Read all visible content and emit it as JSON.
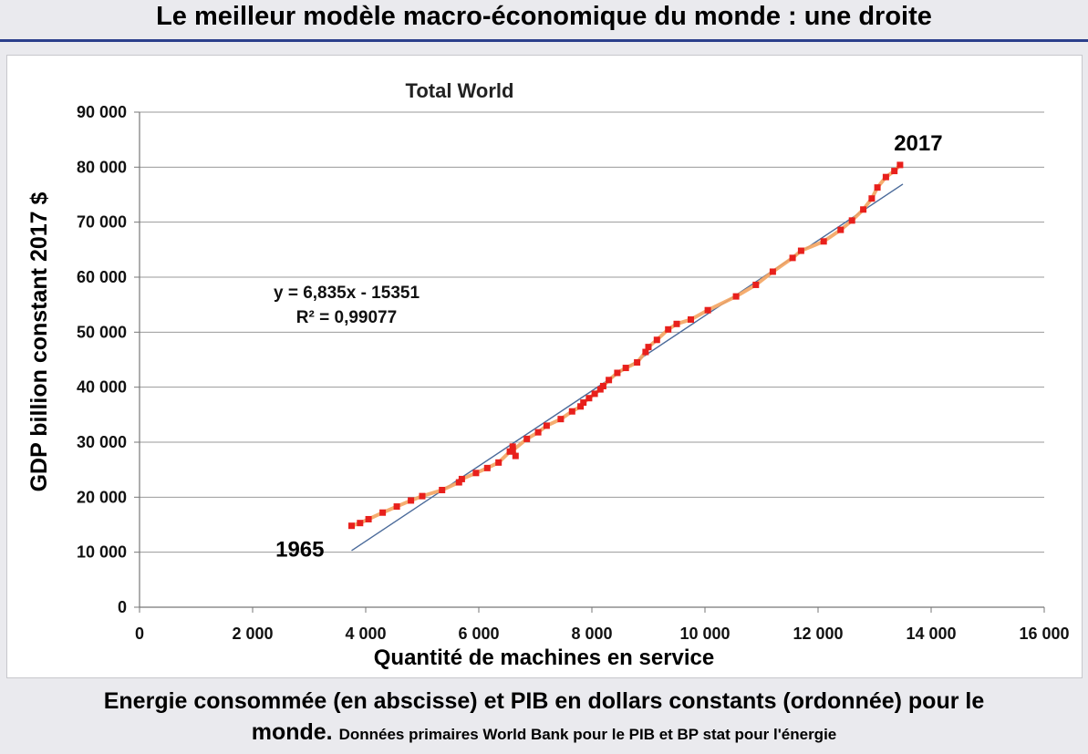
{
  "slide": {
    "title": "Le meilleur modèle macro-économique du monde : une droite",
    "x_caption": "Quantité de machines en service",
    "caption_main_1": "Energie consommée (en abscisse) et PIB en dollars constants (ordonnée) pour le",
    "caption_main_2": "monde.",
    "caption_small": "Données primaires World Bank pour le PIB et BP stat pour l'énergie"
  },
  "chart_data": {
    "type": "scatter",
    "title": "Total World",
    "xlabel": "",
    "ylabel": "GDP billion constant 2017 $",
    "xlim": [
      0,
      16000
    ],
    "ylim": [
      0,
      90000
    ],
    "x_ticks": [
      0,
      2000,
      4000,
      6000,
      8000,
      10000,
      12000,
      14000,
      16000
    ],
    "x_tick_labels": [
      "0",
      "2 000",
      "4 000",
      "6 000",
      "8 000",
      "10 000",
      "12 000",
      "14 000",
      "16 000"
    ],
    "y_ticks": [
      0,
      10000,
      20000,
      30000,
      40000,
      50000,
      60000,
      70000,
      80000,
      90000
    ],
    "y_tick_labels": [
      "0",
      "10 000",
      "20 000",
      "30 000",
      "40 000",
      "50 000",
      "60 000",
      "70 000",
      "80 000",
      "90 000"
    ],
    "grid": "horizontal",
    "series": [
      {
        "color": "#e8201c",
        "line_color": "#f4a460",
        "x": [
          3750,
          3900,
          4050,
          4300,
          4550,
          4800,
          5000,
          5350,
          5650,
          5700,
          5950,
          6150,
          6350,
          6550,
          6600,
          6650,
          6600,
          6850,
          7050,
          7200,
          7450,
          7650,
          7800,
          7850,
          7950,
          8050,
          8150,
          8200,
          8300,
          8450,
          8600,
          8800,
          8950,
          9000,
          9150,
          9350,
          9500,
          9750,
          10050,
          10550,
          10900,
          11200,
          11550,
          11700,
          12100,
          12400,
          12600,
          12800,
          12950,
          13050,
          13200,
          13350,
          13450
        ],
        "y": [
          14800,
          15300,
          16000,
          17200,
          18300,
          19400,
          20200,
          21300,
          22700,
          23300,
          24400,
          25300,
          26300,
          28300,
          29200,
          27500,
          28500,
          30600,
          31800,
          33000,
          34200,
          35600,
          36500,
          37200,
          38000,
          38800,
          39600,
          40200,
          41300,
          42600,
          43500,
          44500,
          46400,
          47300,
          48600,
          50500,
          51500,
          52300,
          54000,
          56500,
          58600,
          61000,
          63500,
          64800,
          66500,
          68600,
          70300,
          72300,
          74300,
          76300,
          78200,
          79300,
          80400
        ]
      }
    ],
    "trendline": {
      "slope": 6.835,
      "intercept": -15351,
      "x_range": [
        3750,
        13500
      ],
      "color": "#4a6a9a",
      "equation": "y = 6,835x - 15351",
      "r_squared": "R² = 0,99077"
    },
    "annotations": [
      {
        "text": "1965",
        "x": 3750,
        "y": 14800
      },
      {
        "text": "2017",
        "x": 13450,
        "y": 80400
      }
    ]
  }
}
